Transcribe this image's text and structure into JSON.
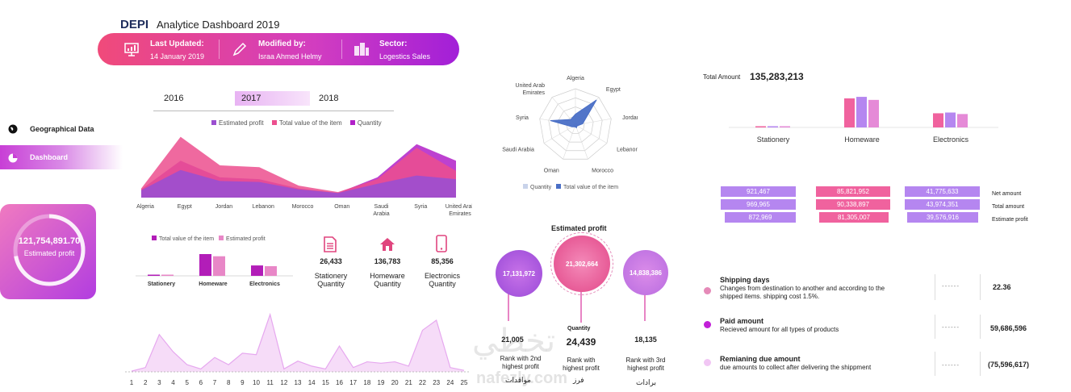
{
  "header": {
    "brand": "DEPI",
    "title": "Analytice Dashboard 2019",
    "last_updated_label": "Last Updated:",
    "last_updated_value": "14 January 2019",
    "modified_by_label": "Modified by:",
    "modified_by_value": "Israa Ahmed Helmy",
    "sector_label": "Sector:",
    "sector_value": "Logestics Sales"
  },
  "year_tabs": [
    "2016",
    "2017",
    "2018"
  ],
  "active_year": "2017",
  "nav": {
    "geo": "Geographical Data",
    "dashboard": "Dashboard"
  },
  "kpi": {
    "value": "121,754,891.70",
    "label": "Estimated profit"
  },
  "quantities": [
    {
      "value": "26,433",
      "label1": "Stationery",
      "label2": "Quantity"
    },
    {
      "value": "136,783",
      "label1": "Homeware",
      "label2": "Quantity"
    },
    {
      "value": "85,356",
      "label1": "Electronics",
      "label2": "Quantity"
    }
  ],
  "estimated_profit_section": {
    "title": "Estimated profit",
    "bubbles": [
      {
        "value": "17,131,972",
        "count": "21,005",
        "rank": "Rank with 2nd",
        "rank2": "highest profit"
      },
      {
        "value": "21,302,664",
        "count": "24,439",
        "rank": "Rank with",
        "rank2": "highest profit"
      },
      {
        "value": "14,838,386",
        "count": "18,135",
        "rank": "Rank with 3rd",
        "rank2": "highest profit"
      }
    ],
    "quantity_label": "Quantity"
  },
  "total_amount": {
    "label": "Total Amount",
    "value": "135,283,213"
  },
  "amount_table": {
    "rows": [
      {
        "label": "Net amount",
        "values": [
          "921,467",
          "85,821,952",
          "41,775,633"
        ]
      },
      {
        "label": "Total amount",
        "values": [
          "969,965",
          "90,338,897",
          "43,974,351"
        ]
      },
      {
        "label": "Estimate profit",
        "values": [
          "872,969",
          "81,305,007",
          "39,576,916"
        ]
      }
    ]
  },
  "metrics": [
    {
      "title": "Shipping days",
      "desc1": "Changes from destination to another and according to the",
      "desc2": "shipped items. shipping cost 1.5%.",
      "dashes": "------",
      "value": "22.36",
      "color": "#e58ab8"
    },
    {
      "title": "Paid amount",
      "desc1": "Recieved amount for all types of products",
      "desc2": "",
      "dashes": "------",
      "value": "59,686,596",
      "color": "#c21fd8"
    },
    {
      "title": "Remianing due amount",
      "desc1": "due amounts to collect after delivering the shippment",
      "desc2": "",
      "dashes": "------",
      "value": "(75,596,617)",
      "color": "#f1c6f4"
    }
  ],
  "watermark": {
    "arabic_big": "تخطي",
    "latin": "nafezly.com",
    "sub1": "مواقدات",
    "sub2": "فرز",
    "sub3": "برادات"
  },
  "chart_data": [
    {
      "type": "area",
      "categories": [
        "Algeria",
        "Egypt",
        "Jordan",
        "Lebanon",
        "Morocco",
        "Oman",
        "Saudi Arabia",
        "Syria",
        "United Arab Emirates"
      ],
      "series": [
        {
          "name": "Estimated profit",
          "values": [
            8,
            30,
            18,
            17,
            9,
            5,
            15,
            24,
            20
          ],
          "color": "#9b4fd0"
        },
        {
          "name": "Total value of the item",
          "values": [
            10,
            66,
            35,
            33,
            13,
            6,
            20,
            54,
            29
          ],
          "color": "#ec4f8e"
        },
        {
          "name": "Quantity",
          "values": [
            9,
            40,
            22,
            20,
            10,
            5,
            22,
            58,
            40
          ],
          "color": "#b120c8"
        }
      ],
      "ylim": [
        0,
        70
      ]
    },
    {
      "type": "radar",
      "categories": [
        "Algeria",
        "Egypt",
        "Jordan",
        "Lebanon",
        "Morocco",
        "Oman",
        "Saudi Arabia",
        "Syria",
        "United Arab Emirates"
      ],
      "series": [
        {
          "name": "Quantity",
          "values": [
            5,
            5,
            5,
            5,
            5,
            5,
            5,
            5,
            5
          ],
          "color": "#c9d3ea"
        },
        {
          "name": "Total value of the item",
          "values": [
            30,
            90,
            20,
            5,
            8,
            5,
            10,
            70,
            20
          ],
          "color": "#4a6fc6"
        }
      ],
      "ylim": [
        0,
        100
      ]
    },
    {
      "type": "bar",
      "categories": [
        "Stationery",
        "Homeware",
        "Electronics"
      ],
      "series": [
        {
          "name": "Total value of the item",
          "values": [
            1,
            90,
            43
          ],
          "color": "#b21db8"
        },
        {
          "name": "Estimated profit",
          "values": [
            0.9,
            81,
            40
          ],
          "color": "#e887c7"
        }
      ],
      "ylim": [
        0,
        100
      ]
    },
    {
      "type": "area",
      "categories": [
        "1",
        "2",
        "3",
        "4",
        "5",
        "6",
        "7",
        "8",
        "9",
        "10",
        "11",
        "12",
        "13",
        "14",
        "15",
        "16",
        "17",
        "18",
        "19",
        "20",
        "21",
        "22",
        "23",
        "24",
        "25"
      ],
      "series": [
        {
          "name": "",
          "values": [
            1,
            6,
            52,
            28,
            10,
            4,
            20,
            10,
            26,
            24,
            80,
            4,
            15,
            8,
            4,
            36,
            6,
            14,
            12,
            14,
            8,
            58,
            72,
            6,
            2
          ],
          "color": "#e6a8ef"
        }
      ],
      "ylim": [
        0,
        90
      ]
    },
    {
      "type": "bar",
      "categories": [
        "Stationery",
        "Homeware",
        "Electronics"
      ],
      "series": [
        {
          "name": "Net amount",
          "values": [
            0.92,
            85.8,
            41.8
          ],
          "color": "#f0629e"
        },
        {
          "name": "Total amount",
          "values": [
            0.97,
            90.3,
            44.0
          ],
          "color": "#b586f0"
        },
        {
          "name": "Estimate profit",
          "values": [
            0.87,
            81.3,
            39.6
          ],
          "color": "#e58ad7"
        }
      ],
      "ylim": [
        0,
        100
      ]
    }
  ]
}
